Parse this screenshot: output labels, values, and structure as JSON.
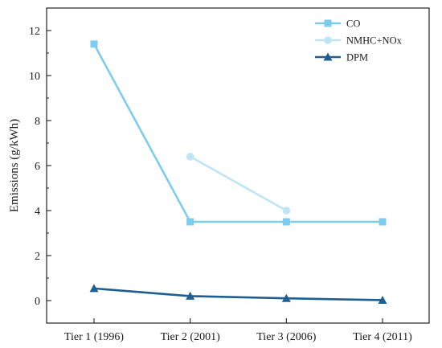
{
  "chart_data": {
    "type": "line",
    "categories": [
      "Tier 1 (1996)",
      "Tier 2 (2001)",
      "Tier 3 (2006)",
      "Tier 4 (2011)"
    ],
    "ylabel": "Emissions (g/kWh)",
    "xlabel": "",
    "ylim": [
      -1,
      13
    ],
    "yticks": [
      0,
      2,
      4,
      6,
      8,
      10,
      12
    ],
    "grid": false,
    "legend_position": "top-right",
    "series": [
      {
        "name": "CO",
        "values": [
          11.4,
          3.5,
          3.5,
          3.5
        ],
        "color": "#7fcdee",
        "marker": "square"
      },
      {
        "name": "NMHC+NOx",
        "values": [
          null,
          6.4,
          4.0,
          null
        ],
        "color": "#bfe4f6",
        "marker": "circle"
      },
      {
        "name": "DPM",
        "values": [
          0.54,
          0.2,
          0.1,
          0.02
        ],
        "color": "#1e5e91",
        "marker": "triangle"
      }
    ]
  }
}
